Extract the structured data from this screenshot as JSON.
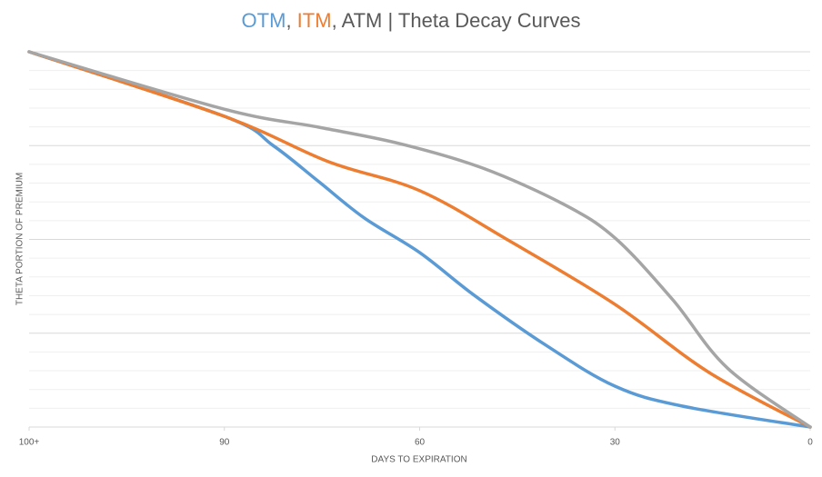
{
  "chart_data": {
    "type": "line",
    "title": [
      {
        "text": "OTM",
        "color": "#5b9bd5"
      },
      {
        "text": ", ",
        "color": "#595959"
      },
      {
        "text": "ITM",
        "color": "#ed7d31"
      },
      {
        "text": ", ATM | Theta Decay Curves",
        "color": "#595959"
      }
    ],
    "xlabel": "DAYS TO EXPIRATION",
    "ylabel": "THETA PORTION OF PREMIUM",
    "xlim": [
      120,
      0
    ],
    "xticks": [
      {
        "value": 120,
        "label": "100+"
      },
      90,
      60,
      30,
      0
    ],
    "ylim": [
      0,
      100
    ],
    "yticks": [
      0,
      25,
      50,
      75,
      100
    ],
    "minor_yticks": [
      5,
      10,
      15,
      20,
      30,
      35,
      40,
      45,
      55,
      60,
      65,
      70,
      80,
      85,
      90,
      95
    ],
    "grid": true,
    "series": [
      {
        "color": "#5b9bd5",
        "x": [
          120,
          90,
          82.5,
          75.5,
          68.5,
          60,
          51.6,
          40.6,
          30,
          19.7,
          0
        ],
        "values": [
          100,
          82.8,
          75,
          65.4,
          55.7,
          46.5,
          35.1,
          21.8,
          10.9,
          5.6,
          0
        ]
      },
      {
        "color": "#ed7d31",
        "x": [
          120,
          90,
          74,
          60,
          46.2,
          30,
          15.5,
          0
        ],
        "values": [
          100,
          82.8,
          70.7,
          63,
          49.6,
          32.7,
          14.5,
          0
        ]
      },
      {
        "color": "#a5a5a5",
        "x": [
          120,
          90,
          75.5,
          63,
          50.3,
          37.8,
          30,
          21.1,
          12.7,
          0
        ],
        "values": [
          100,
          84.7,
          79.9,
          75.5,
          69,
          59.3,
          50.4,
          33.9,
          15.7,
          0
        ]
      }
    ]
  }
}
